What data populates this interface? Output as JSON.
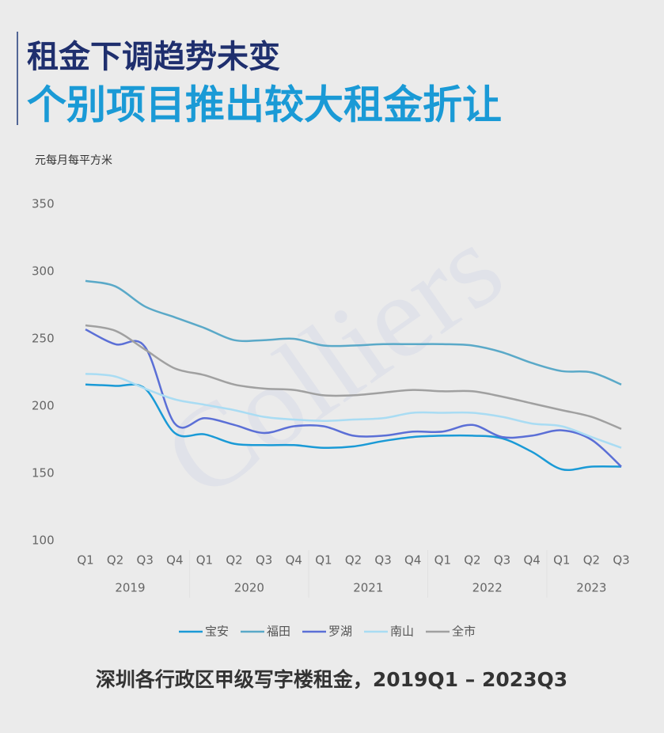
{
  "header": {
    "title_line1": "租金下调趋势未变",
    "title_line2": "个别项目推出较大租金折让"
  },
  "chart_data": {
    "type": "line",
    "ylabel": "元每月每平方米",
    "watermark": "Colliers",
    "categories": [
      "Q1",
      "Q2",
      "Q3",
      "Q4",
      "Q1",
      "Q2",
      "Q3",
      "Q4",
      "Q1",
      "Q2",
      "Q3",
      "Q4",
      "Q1",
      "Q2",
      "Q3",
      "Q4",
      "Q1",
      "Q2",
      "Q3"
    ],
    "category_groups": [
      "2019",
      "2020",
      "2021",
      "2022",
      "2023"
    ],
    "ylim": [
      100,
      350
    ],
    "yticks": [
      100,
      150,
      200,
      250,
      300,
      350
    ],
    "series": [
      {
        "name": "宝安",
        "color": "#1a9ad6",
        "values": [
          216,
          215,
          213,
          180,
          179,
          172,
          171,
          171,
          169,
          170,
          174,
          177,
          178,
          178,
          176,
          166,
          153,
          155,
          155
        ]
      },
      {
        "name": "福田",
        "color": "#5aa9c8",
        "values": [
          293,
          289,
          274,
          266,
          258,
          249,
          249,
          250,
          245,
          245,
          246,
          246,
          246,
          245,
          240,
          232,
          226,
          225,
          216
        ]
      },
      {
        "name": "罗湖",
        "color": "#5b6fd6",
        "values": [
          257,
          246,
          244,
          187,
          191,
          186,
          180,
          185,
          185,
          178,
          178,
          181,
          181,
          186,
          177,
          178,
          182,
          175,
          155
        ]
      },
      {
        "name": "南山",
        "color": "#a9dcf3",
        "values": [
          224,
          222,
          213,
          205,
          201,
          197,
          192,
          190,
          189,
          190,
          191,
          195,
          195,
          195,
          192,
          187,
          185,
          177,
          169
        ]
      },
      {
        "name": "全市",
        "color": "#a0a0a0",
        "values": [
          260,
          256,
          242,
          228,
          223,
          216,
          213,
          212,
          208,
          208,
          210,
          212,
          211,
          211,
          207,
          202,
          197,
          192,
          183
        ]
      }
    ],
    "caption": "深圳各行政区甲级写字楼租金，2019Q1 – 2023Q3"
  }
}
